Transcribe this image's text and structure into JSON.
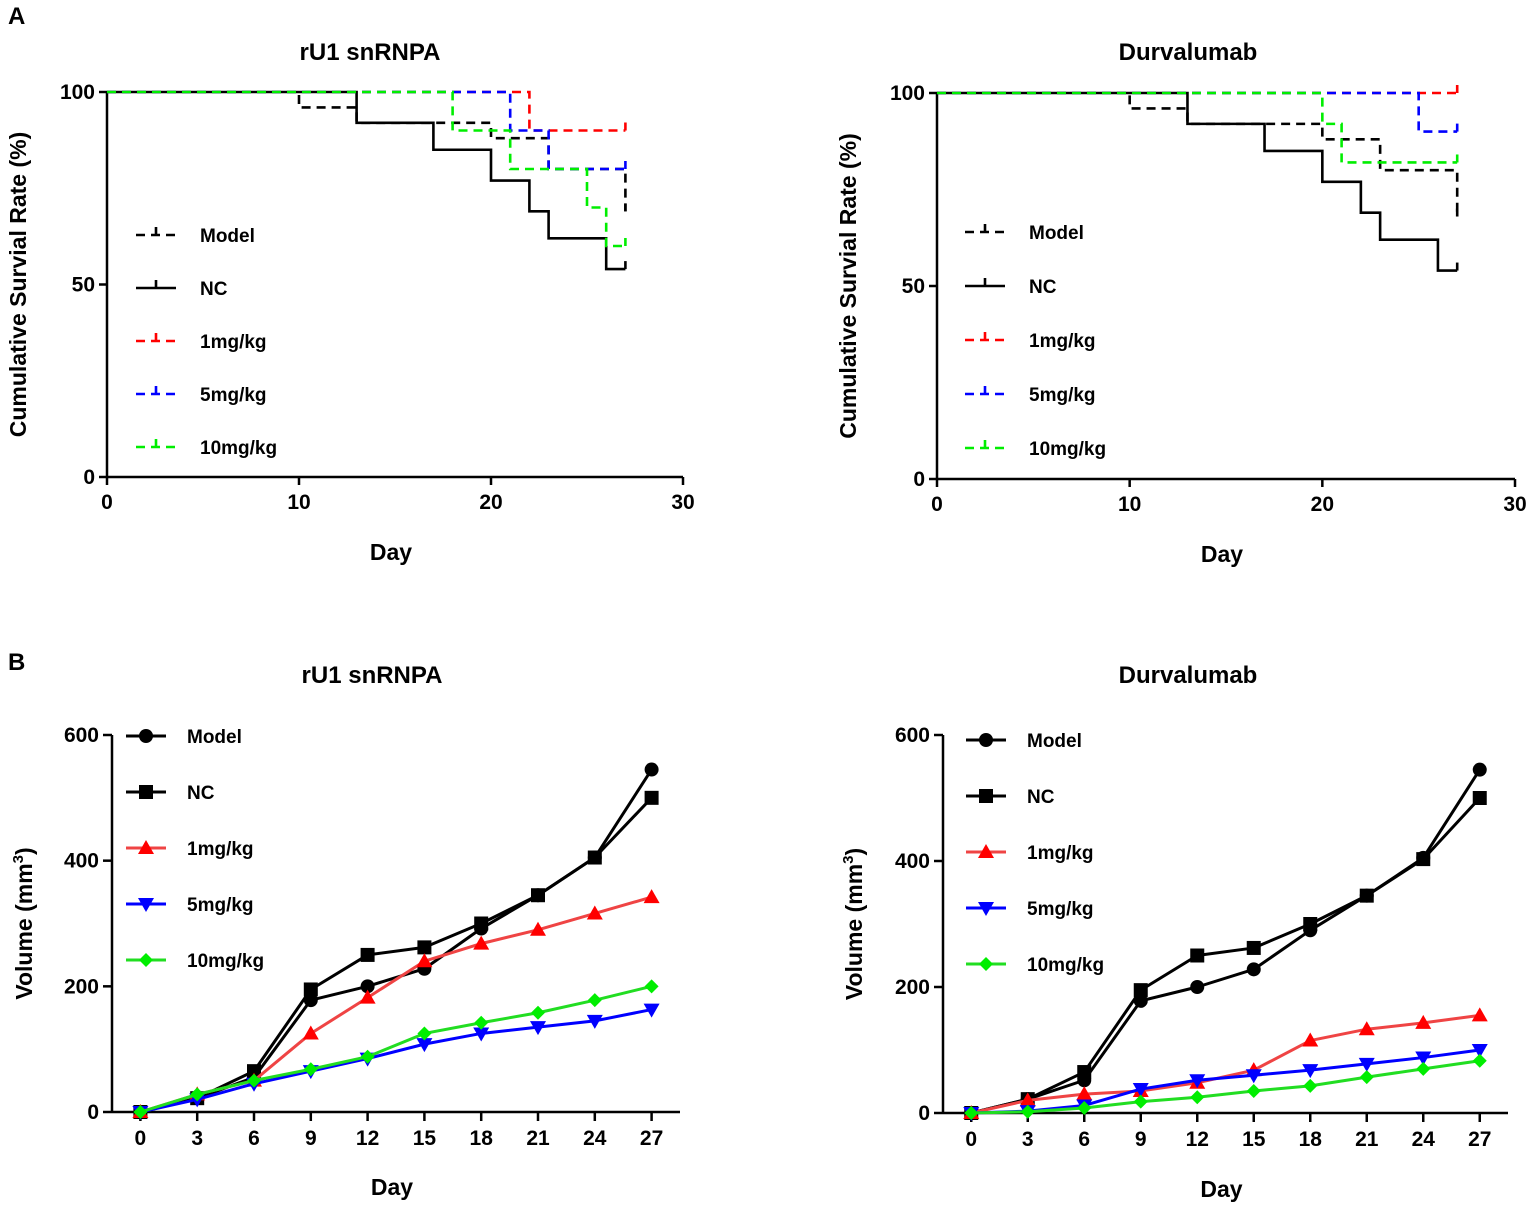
{
  "panels": [
    {
      "letter": "A"
    },
    {
      "letter": "B"
    }
  ],
  "colors": {
    "Model": "#000000",
    "NC": "#000000",
    "1mg/kg": "#ff0000",
    "5mg/kg": "#0000ff",
    "10mg/kg": "#00ee00",
    "1mg/kg_line": "#ef4444",
    "10mg/kg_line": "#22dd22"
  },
  "chart_data": [
    {
      "id": "survival-ru1",
      "type": "line",
      "subtype": "kaplan-meier step",
      "title": "rU1 snRNPA",
      "xlabel": "Day",
      "ylabel": "Cumulative Survial Rate (%)",
      "xlim": [
        0,
        30
      ],
      "ylim": [
        0,
        100
      ],
      "xticks": [
        "0",
        "10",
        "20",
        "30"
      ],
      "yticks": [
        "0",
        "50",
        "100"
      ],
      "legend_position": "left-middle",
      "series": [
        {
          "name": "Model",
          "style": "dashed",
          "x": [
            0,
            10,
            13,
            18,
            20,
            22,
            23,
            27,
            27
          ],
          "y": [
            100,
            96,
            92,
            92,
            88,
            88,
            80,
            80,
            69
          ]
        },
        {
          "name": "NC",
          "style": "solid",
          "x": [
            0,
            10,
            13,
            17,
            20,
            22,
            23,
            26,
            27
          ],
          "y": [
            100,
            100,
            92,
            85,
            77,
            69,
            62,
            54,
            54
          ]
        },
        {
          "name": "1mg/kg",
          "style": "dashed",
          "x": [
            0,
            22,
            27
          ],
          "y": [
            100,
            90,
            90
          ]
        },
        {
          "name": "5mg/kg",
          "style": "dashed",
          "x": [
            0,
            21,
            23,
            27
          ],
          "y": [
            100,
            90,
            80,
            80
          ]
        },
        {
          "name": "10mg/kg",
          "style": "dashed",
          "x": [
            0,
            18,
            21,
            25,
            26,
            27
          ],
          "y": [
            100,
            90,
            80,
            70,
            60,
            60
          ]
        }
      ]
    },
    {
      "id": "survival-durva",
      "type": "line",
      "subtype": "kaplan-meier step",
      "title": "Durvalumab",
      "xlabel": "Day",
      "ylabel": "Cumulative Survial Rate (%)",
      "xlim": [
        0,
        30
      ],
      "ylim": [
        0,
        100
      ],
      "xticks": [
        "0",
        "10",
        "20",
        "30"
      ],
      "yticks": [
        "0",
        "50",
        "100"
      ],
      "legend_position": "left-middle",
      "series": [
        {
          "name": "Model",
          "style": "dashed",
          "x": [
            0,
            10,
            13,
            17,
            20,
            21,
            23,
            27,
            27
          ],
          "y": [
            100,
            96,
            92,
            92,
            88,
            88,
            80,
            80,
            68
          ]
        },
        {
          "name": "NC",
          "style": "solid",
          "x": [
            0,
            10,
            13,
            17,
            20,
            22,
            23,
            26,
            27
          ],
          "y": [
            100,
            100,
            92,
            85,
            77,
            69,
            62,
            54,
            54
          ]
        },
        {
          "name": "1mg/kg",
          "style": "dashed",
          "x": [
            0,
            27
          ],
          "y": [
            100,
            100
          ]
        },
        {
          "name": "5mg/kg",
          "style": "dashed",
          "x": [
            0,
            25,
            27
          ],
          "y": [
            100,
            90,
            90
          ]
        },
        {
          "name": "10mg/kg",
          "style": "dashed",
          "x": [
            0,
            20,
            21,
            27
          ],
          "y": [
            100,
            92,
            82,
            82
          ]
        }
      ]
    },
    {
      "id": "volume-ru1",
      "type": "line",
      "title": "rU1 snRNPA",
      "xlabel": "Day",
      "ylabel": "Volume (mm",
      "ylabel_sup": "3",
      "ylabel_end": ")",
      "xlim": [
        -1.5,
        28.5
      ],
      "ylim": [
        0,
        600
      ],
      "xticks": [
        "0",
        "3",
        "6",
        "9",
        "12",
        "15",
        "18",
        "21",
        "24",
        "27"
      ],
      "yticks": [
        "0",
        "200",
        "400",
        "600"
      ],
      "legend_position": "top-left",
      "x": [
        0,
        3,
        6,
        9,
        12,
        15,
        18,
        21,
        24,
        27
      ],
      "series": [
        {
          "name": "Model",
          "marker": "circle",
          "values": [
            0,
            22,
            55,
            178,
            200,
            228,
            292,
            345,
            405,
            545
          ]
        },
        {
          "name": "NC",
          "marker": "square",
          "values": [
            0,
            22,
            65,
            195,
            250,
            262,
            300,
            345,
            405,
            500
          ]
        },
        {
          "name": "1mg/kg",
          "marker": "triangle-up",
          "values": [
            0,
            28,
            50,
            125,
            182,
            240,
            268,
            290,
            316,
            342
          ]
        },
        {
          "name": "5mg/kg",
          "marker": "triangle-down",
          "values": [
            0,
            20,
            45,
            65,
            85,
            108,
            125,
            135,
            145,
            163
          ]
        },
        {
          "name": "10mg/kg",
          "marker": "diamond",
          "values": [
            0,
            28,
            50,
            68,
            88,
            125,
            142,
            158,
            178,
            200
          ]
        }
      ]
    },
    {
      "id": "volume-durva",
      "type": "line",
      "title": "Durvalumab",
      "xlabel": "Day",
      "ylabel": "Volume (mm",
      "ylabel_sup": "3",
      "ylabel_end": ")",
      "xlim": [
        -1.5,
        28.5
      ],
      "ylim": [
        0,
        600
      ],
      "xticks": [
        "0",
        "3",
        "6",
        "9",
        "12",
        "15",
        "18",
        "21",
        "24",
        "27"
      ],
      "yticks": [
        "0",
        "200",
        "400",
        "600"
      ],
      "legend_position": "top-left",
      "x": [
        0,
        3,
        6,
        9,
        12,
        15,
        18,
        21,
        24,
        27
      ],
      "series": [
        {
          "name": "Model",
          "marker": "circle",
          "values": [
            0,
            22,
            52,
            178,
            200,
            228,
            290,
            345,
            405,
            545
          ]
        },
        {
          "name": "NC",
          "marker": "square",
          "values": [
            0,
            22,
            65,
            195,
            250,
            262,
            300,
            345,
            403,
            500
          ]
        },
        {
          "name": "1mg/kg",
          "marker": "triangle-up",
          "values": [
            0,
            20,
            30,
            35,
            48,
            68,
            115,
            133,
            143,
            155
          ]
        },
        {
          "name": "5mg/kg",
          "marker": "triangle-down",
          "values": [
            0,
            3,
            12,
            38,
            52,
            60,
            68,
            78,
            88,
            100
          ]
        },
        {
          "name": "10mg/kg",
          "marker": "diamond",
          "values": [
            0,
            2,
            8,
            18,
            25,
            35,
            43,
            57,
            70,
            83
          ]
        }
      ]
    }
  ]
}
